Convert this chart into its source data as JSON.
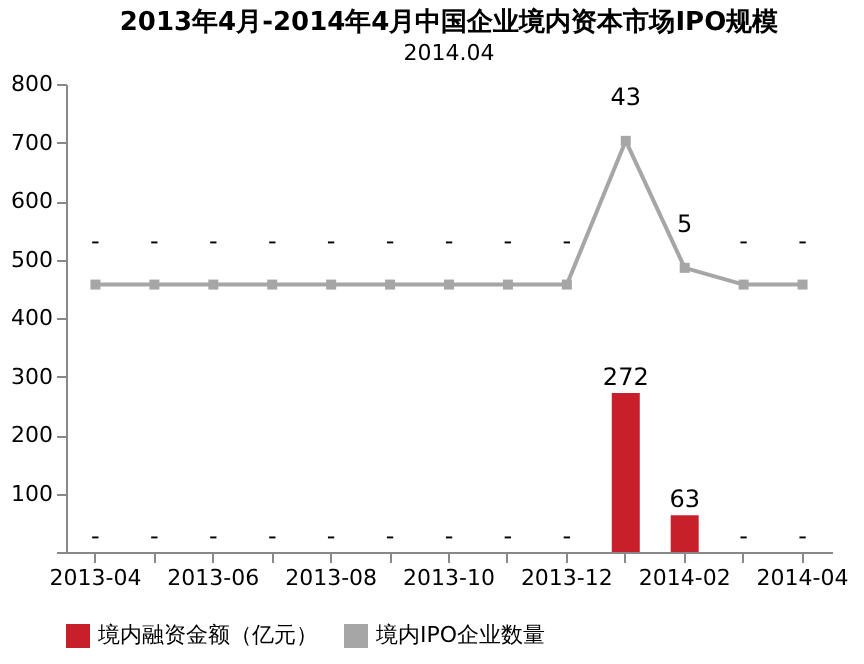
{
  "chart_data": {
    "type": "bar",
    "title": "2013年4月-2014年4月中国企业境内资本市场IPO规模",
    "categories": [
      "2013-04",
      null,
      "2013-06",
      null,
      "2013-08",
      null,
      "2013-10",
      null,
      "2013-12",
      null,
      "2014-02",
      null,
      "2014-04"
    ],
    "series": [
      {
        "name": "境内融资金额（亿元）",
        "color": "#c8202a",
        "values": [
          0,
          0,
          0,
          0,
          0,
          0,
          0,
          0,
          0,
          272,
          63,
          0,
          0
        ],
        "value_labels": [
          "-",
          "-",
          "-",
          "-",
          "-",
          "-",
          "-",
          "-",
          "-",
          "272",
          "63",
          "-",
          "-"
        ]
      },
      {
        "name": "境内IPO企业数量",
        "type": "line",
        "axis": "y2",
        "color": "#a6a6a6",
        "marker": "square",
        "values": [
          0,
          0,
          0,
          0,
          0,
          0,
          0,
          0,
          0,
          43,
          5,
          0,
          0
        ],
        "value_labels": [
          "-",
          "-",
          "-",
          "-",
          "-",
          "-",
          "-",
          "-",
          "-",
          "43",
          "5",
          "-",
          "-"
        ]
      }
    ],
    "ylim": [
      0,
      800
    ],
    "yticks": [
      {
        "value": 0,
        "label": null
      },
      100,
      200,
      300,
      400,
      500,
      600,
      700,
      800
    ],
    "y2lim": [
      -80,
      60
    ],
    "grid": false,
    "legend": "bottom",
    "annotations": [
      "2014.04"
    ]
  }
}
